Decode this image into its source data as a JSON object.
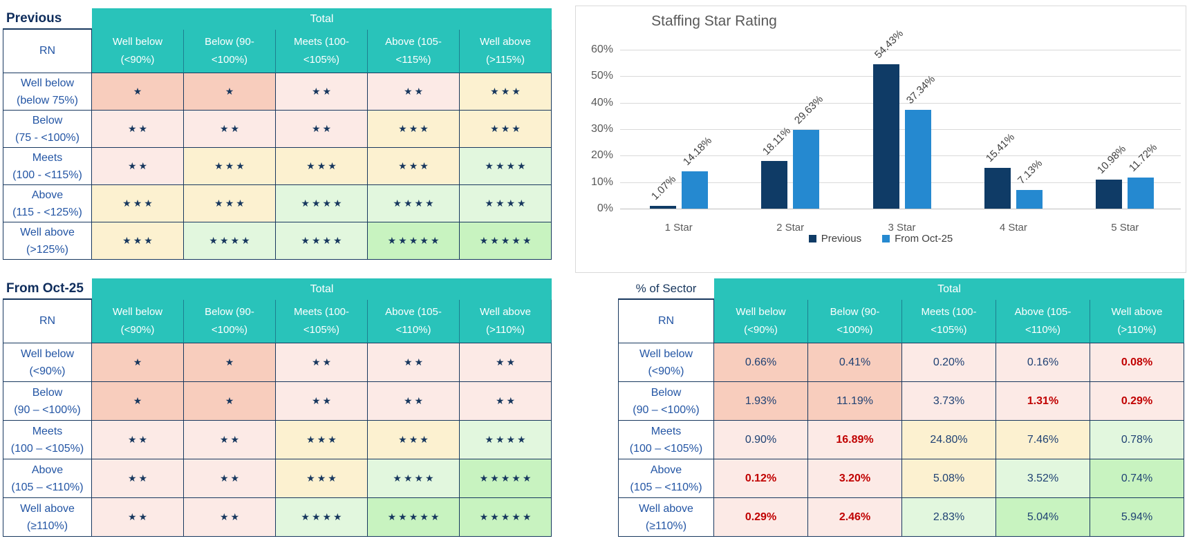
{
  "colors": {
    "teal_header": "#29C3BA",
    "navy_title": "#0F2D5C",
    "label_blue": "#2355A4",
    "star_navy": "#17375E",
    "value_navy": "#1F4173",
    "alert_red": "#C00000",
    "cell_salmon": "#F8CDBD",
    "cell_pink": "#FCEAE6",
    "cell_cream": "#FCF1D0",
    "cell_light_green": "#E2F7DE",
    "cell_green": "#C8F3C0",
    "chart_gray": "#595959",
    "gridline_gray": "#D9D9D9"
  },
  "left_tables": [
    {
      "title": "Previous",
      "total_label": "Total",
      "corner_label": "RN",
      "col_headers": [
        "Well below\n(<90%)",
        "Below (90-\n<100%)",
        "Meets (100-\n<105%)",
        "Above (105-\n<115%)",
        "Well above\n(>115%)"
      ],
      "rows": [
        {
          "label": "Well below\n(below 75%)",
          "cells": [
            {
              "stars": 1,
              "bg": "salmon"
            },
            {
              "stars": 1,
              "bg": "salmon"
            },
            {
              "stars": 2,
              "bg": "pink"
            },
            {
              "stars": 2,
              "bg": "pink"
            },
            {
              "stars": 3,
              "bg": "cream"
            }
          ]
        },
        {
          "label": "Below\n(75 - <100%)",
          "cells": [
            {
              "stars": 2,
              "bg": "pink"
            },
            {
              "stars": 2,
              "bg": "pink"
            },
            {
              "stars": 2,
              "bg": "pink"
            },
            {
              "stars": 3,
              "bg": "cream"
            },
            {
              "stars": 3,
              "bg": "cream"
            }
          ]
        },
        {
          "label": "Meets\n(100 - <115%)",
          "cells": [
            {
              "stars": 2,
              "bg": "pink"
            },
            {
              "stars": 3,
              "bg": "cream"
            },
            {
              "stars": 3,
              "bg": "cream"
            },
            {
              "stars": 3,
              "bg": "cream"
            },
            {
              "stars": 4,
              "bg": "green1"
            }
          ]
        },
        {
          "label": "Above\n(115 - <125%)",
          "cells": [
            {
              "stars": 3,
              "bg": "cream"
            },
            {
              "stars": 3,
              "bg": "cream"
            },
            {
              "stars": 4,
              "bg": "green1"
            },
            {
              "stars": 4,
              "bg": "green1"
            },
            {
              "stars": 4,
              "bg": "green1"
            }
          ]
        },
        {
          "label": "Well above\n(>125%)",
          "cells": [
            {
              "stars": 3,
              "bg": "cream"
            },
            {
              "stars": 4,
              "bg": "green1"
            },
            {
              "stars": 4,
              "bg": "green1"
            },
            {
              "stars": 5,
              "bg": "green2"
            },
            {
              "stars": 5,
              "bg": "green2"
            }
          ]
        }
      ]
    },
    {
      "title": "From Oct-25",
      "total_label": "Total",
      "corner_label": "RN",
      "col_headers": [
        "Well below\n(<90%)",
        "Below (90-\n<100%)",
        "Meets (100-\n<105%)",
        "Above (105-\n<110%)",
        "Well above\n(>110%)"
      ],
      "rows": [
        {
          "label": "Well below\n(<90%)",
          "cells": [
            {
              "stars": 1,
              "bg": "salmon"
            },
            {
              "stars": 1,
              "bg": "salmon"
            },
            {
              "stars": 2,
              "bg": "pink"
            },
            {
              "stars": 2,
              "bg": "pink"
            },
            {
              "stars": 2,
              "bg": "pink"
            }
          ]
        },
        {
          "label": "Below\n(90 – <100%)",
          "cells": [
            {
              "stars": 1,
              "bg": "salmon"
            },
            {
              "stars": 1,
              "bg": "salmon"
            },
            {
              "stars": 2,
              "bg": "pink"
            },
            {
              "stars": 2,
              "bg": "pink"
            },
            {
              "stars": 2,
              "bg": "pink"
            }
          ]
        },
        {
          "label": "Meets\n(100 – <105%)",
          "cells": [
            {
              "stars": 2,
              "bg": "pink"
            },
            {
              "stars": 2,
              "bg": "pink"
            },
            {
              "stars": 3,
              "bg": "cream"
            },
            {
              "stars": 3,
              "bg": "cream"
            },
            {
              "stars": 4,
              "bg": "green1"
            }
          ]
        },
        {
          "label": "Above\n(105 – <110%)",
          "cells": [
            {
              "stars": 2,
              "bg": "pink"
            },
            {
              "stars": 2,
              "bg": "pink"
            },
            {
              "stars": 3,
              "bg": "cream"
            },
            {
              "stars": 4,
              "bg": "green1"
            },
            {
              "stars": 5,
              "bg": "green2"
            }
          ]
        },
        {
          "label": "Well above\n(≥110%)",
          "cells": [
            {
              "stars": 2,
              "bg": "pink"
            },
            {
              "stars": 2,
              "bg": "pink"
            },
            {
              "stars": 4,
              "bg": "green1"
            },
            {
              "stars": 5,
              "bg": "green2"
            },
            {
              "stars": 5,
              "bg": "green2"
            }
          ]
        }
      ]
    }
  ],
  "sector_table": {
    "title": "% of Sector",
    "total_label": "Total",
    "corner_label": "RN",
    "col_headers": [
      "Well below\n(<90%)",
      "Below (90-\n<100%)",
      "Meets (100-\n<105%)",
      "Above (105-\n<110%)",
      "Well above\n(>110%)"
    ],
    "rows": [
      {
        "label": "Well below\n(<90%)",
        "cells": [
          {
            "v": "0.66%",
            "bg": "salmon"
          },
          {
            "v": "0.41%",
            "bg": "salmon"
          },
          {
            "v": "0.20%",
            "bg": "pink"
          },
          {
            "v": "0.16%",
            "bg": "pink"
          },
          {
            "v": "0.08%",
            "bg": "pink",
            "red": true
          }
        ]
      },
      {
        "label": "Below\n(90 – <100%)",
        "cells": [
          {
            "v": "1.93%",
            "bg": "salmon"
          },
          {
            "v": "11.19%",
            "bg": "salmon"
          },
          {
            "v": "3.73%",
            "bg": "pink"
          },
          {
            "v": "1.31%",
            "bg": "pink",
            "red": true
          },
          {
            "v": "0.29%",
            "bg": "pink",
            "red": true
          }
        ]
      },
      {
        "label": "Meets\n(100 – <105%)",
        "cells": [
          {
            "v": "0.90%",
            "bg": "pink"
          },
          {
            "v": "16.89%",
            "bg": "pink",
            "red": true
          },
          {
            "v": "24.80%",
            "bg": "cream"
          },
          {
            "v": "7.46%",
            "bg": "cream"
          },
          {
            "v": "0.78%",
            "bg": "green1"
          }
        ]
      },
      {
        "label": "Above\n(105 – <110%)",
        "cells": [
          {
            "v": "0.12%",
            "bg": "pink",
            "red": true
          },
          {
            "v": "3.20%",
            "bg": "pink",
            "red": true
          },
          {
            "v": "5.08%",
            "bg": "cream"
          },
          {
            "v": "3.52%",
            "bg": "green1"
          },
          {
            "v": "0.74%",
            "bg": "green2"
          }
        ]
      },
      {
        "label": "Well above\n(≥110%)",
        "cells": [
          {
            "v": "0.29%",
            "bg": "pink",
            "red": true
          },
          {
            "v": "2.46%",
            "bg": "pink",
            "red": true
          },
          {
            "v": "2.83%",
            "bg": "green1"
          },
          {
            "v": "5.04%",
            "bg": "green2"
          },
          {
            "v": "5.94%",
            "bg": "green2"
          }
        ]
      }
    ]
  },
  "chart_data": {
    "type": "bar",
    "title": "Staffing Star Rating",
    "categories": [
      "1 Star",
      "2 Star",
      "3 Star",
      "4 Star",
      "5 Star"
    ],
    "series": [
      {
        "name": "Previous",
        "color": "#0F3B66",
        "values": [
          1.07,
          18.11,
          54.43,
          15.41,
          10.98
        ],
        "labels": [
          "1.07%",
          "18.11%",
          "54.43%",
          "15.41%",
          "10.98%"
        ]
      },
      {
        "name": "From Oct-25",
        "color": "#2589D0",
        "values": [
          14.18,
          29.63,
          37.34,
          7.13,
          11.72
        ],
        "labels": [
          "14.18%",
          "29.63%",
          "37.34%",
          "7.13%",
          "11.72%"
        ]
      }
    ],
    "ylim": [
      0,
      60
    ],
    "yticks": [
      0,
      10,
      20,
      30,
      40,
      50,
      60
    ],
    "ytick_labels": [
      "0%",
      "10%",
      "20%",
      "30%",
      "40%",
      "50%",
      "60%"
    ],
    "grid": true,
    "legend_position": "bottom",
    "data_label_rotation": -45
  }
}
